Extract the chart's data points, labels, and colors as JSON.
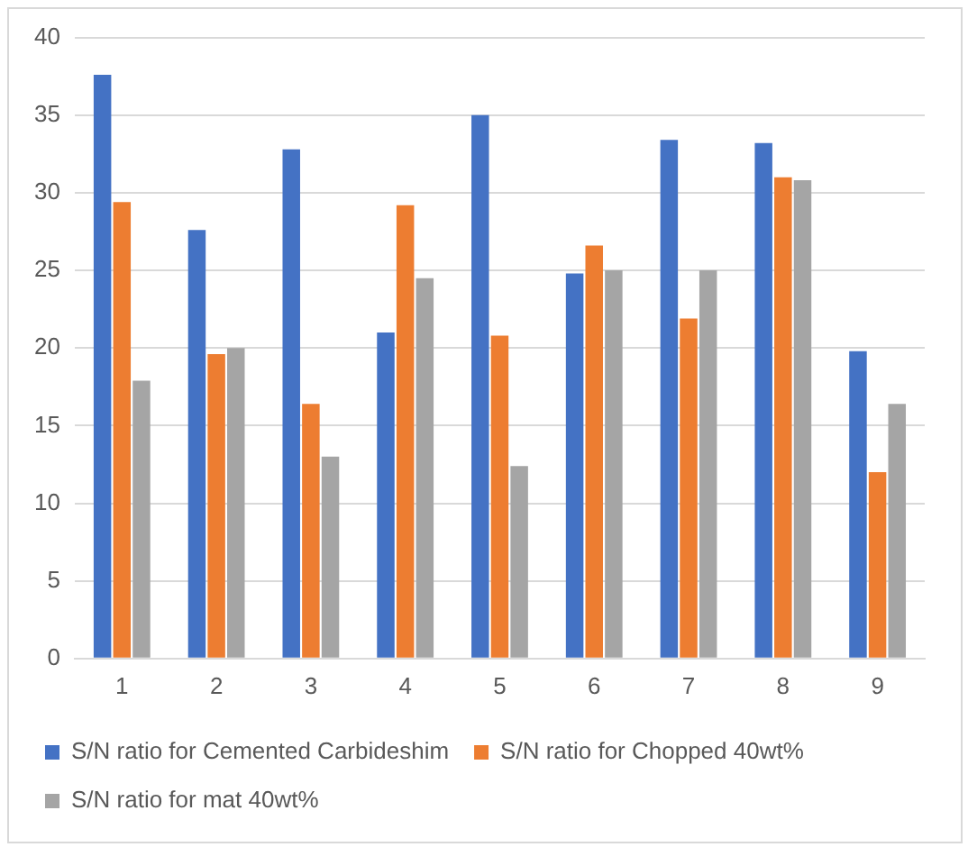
{
  "chart_data": {
    "type": "bar",
    "categories": [
      "1",
      "2",
      "3",
      "4",
      "5",
      "6",
      "7",
      "8",
      "9"
    ],
    "series": [
      {
        "name": "S/N ratio for Cemented Carbideshim",
        "color": "#4472c4",
        "values": [
          37.6,
          27.6,
          32.8,
          21,
          35,
          24.8,
          33.4,
          33.2,
          19.8
        ]
      },
      {
        "name": "S/N ratio for Chopped 40wt%",
        "color": "#ed7d31",
        "values": [
          29.4,
          19.6,
          16.4,
          29.2,
          20.8,
          26.6,
          21.9,
          31,
          12
        ]
      },
      {
        "name": "S/N ratio for mat 40wt%",
        "color": "#a5a5a5",
        "values": [
          17.9,
          20,
          13,
          24.5,
          12.4,
          25,
          25,
          30.8,
          16.4
        ]
      }
    ],
    "ylim": [
      0,
      40
    ],
    "yticks": [
      0,
      5,
      10,
      15,
      20,
      25,
      30,
      35,
      40
    ],
    "grid": "y",
    "legend": "bottom"
  }
}
